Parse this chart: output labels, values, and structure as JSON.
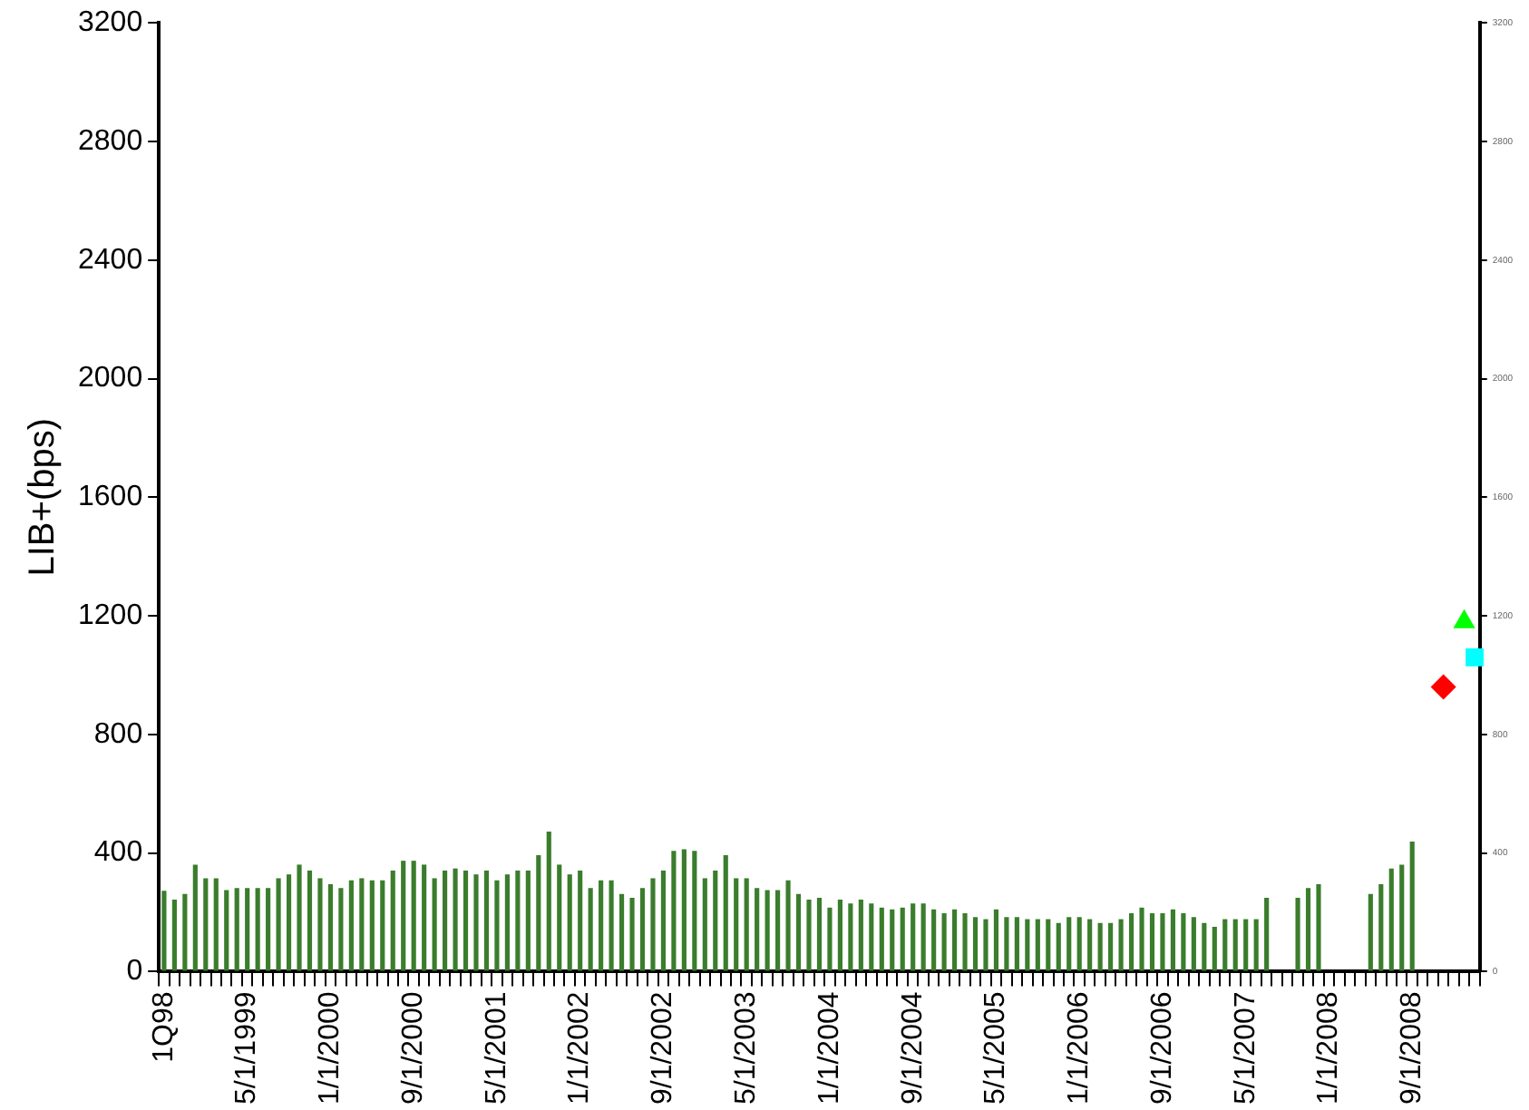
{
  "chart_data": {
    "type": "bar",
    "ylabel": "LIB+(bps)",
    "categories": [
      "1Q98",
      null,
      null,
      null,
      null,
      null,
      null,
      null,
      "5/1/1999",
      null,
      null,
      null,
      null,
      null,
      null,
      null,
      "1/1/2000",
      null,
      null,
      null,
      null,
      null,
      null,
      null,
      "9/1/2000",
      null,
      null,
      null,
      null,
      null,
      null,
      null,
      "5/1/2001",
      null,
      null,
      null,
      null,
      null,
      null,
      null,
      "1/1/2002",
      null,
      null,
      null,
      null,
      null,
      null,
      null,
      "9/1/2002",
      null,
      null,
      null,
      null,
      null,
      null,
      null,
      "5/1/2003",
      null,
      null,
      null,
      null,
      null,
      null,
      null,
      "1/1/2004",
      null,
      null,
      null,
      null,
      null,
      null,
      null,
      "9/1/2004",
      null,
      null,
      null,
      null,
      null,
      null,
      null,
      "5/1/2005",
      null,
      null,
      null,
      null,
      null,
      null,
      null,
      "1/1/2006",
      null,
      null,
      null,
      null,
      null,
      null,
      null,
      "9/1/2006",
      null,
      null,
      null,
      null,
      null,
      null,
      null,
      "5/1/2007",
      null,
      null,
      null,
      null,
      null,
      null,
      null,
      "1/1/2008",
      null,
      null,
      null,
      null,
      null,
      null,
      null,
      "9/1/2008",
      null,
      null,
      null,
      null,
      null,
      null
    ],
    "series": [
      {
        "color": "#3a7d2c",
        "values": [
          273,
          243,
          262,
          361,
          315,
          315,
          275,
          282,
          282,
          282,
          282,
          315,
          328,
          361,
          341,
          315,
          295,
          282,
          308,
          315,
          308,
          308,
          341,
          374,
          374,
          361,
          315,
          341,
          348,
          341,
          328,
          341,
          308,
          328,
          341,
          341,
          393,
          472,
          361,
          328,
          341,
          282,
          308,
          308,
          262,
          249,
          282,
          315,
          341,
          407,
          413,
          407,
          315,
          341,
          393,
          315,
          315,
          282,
          275,
          275,
          308,
          262,
          243,
          249,
          216,
          243,
          230,
          243,
          230,
          216,
          210,
          216,
          230,
          230,
          210,
          197,
          210,
          197,
          184,
          177,
          210,
          184,
          184,
          177,
          177,
          177,
          164,
          184,
          184,
          177,
          164,
          164,
          177,
          197,
          216,
          197,
          197,
          210,
          197,
          184,
          164,
          151,
          177,
          177,
          177,
          177,
          249,
          null,
          null,
          249,
          282,
          295,
          null,
          null,
          null,
          null,
          262,
          295,
          348,
          361,
          439,
          null,
          null,
          null,
          null,
          null,
          null
        ]
      },
      {
        "type": "scatter",
        "color": "#ff0000",
        "marker": "diamond",
        "values": [
          null,
          null,
          null,
          null,
          null,
          null,
          null,
          null,
          null,
          null,
          null,
          null,
          null,
          null,
          null,
          null,
          null,
          null,
          null,
          null,
          null,
          null,
          null,
          null,
          null,
          null,
          null,
          null,
          null,
          null,
          null,
          null,
          null,
          null,
          null,
          null,
          null,
          null,
          null,
          null,
          null,
          null,
          null,
          null,
          null,
          null,
          null,
          null,
          null,
          null,
          null,
          null,
          null,
          null,
          null,
          null,
          null,
          null,
          null,
          null,
          null,
          null,
          null,
          null,
          null,
          null,
          null,
          null,
          null,
          null,
          null,
          null,
          null,
          null,
          null,
          null,
          null,
          null,
          null,
          null,
          null,
          null,
          null,
          null,
          null,
          null,
          null,
          null,
          null,
          null,
          null,
          null,
          null,
          null,
          null,
          null,
          null,
          null,
          null,
          null,
          null,
          null,
          null,
          null,
          null,
          null,
          null,
          null,
          null,
          null,
          null,
          null,
          null,
          null,
          null,
          null,
          null,
          null,
          null,
          null,
          null,
          null,
          null,
          960,
          null,
          null,
          null
        ]
      },
      {
        "type": "scatter",
        "color": "#00ff00",
        "marker": "triangle",
        "values": [
          null,
          null,
          null,
          null,
          null,
          null,
          null,
          null,
          null,
          null,
          null,
          null,
          null,
          null,
          null,
          null,
          null,
          null,
          null,
          null,
          null,
          null,
          null,
          null,
          null,
          null,
          null,
          null,
          null,
          null,
          null,
          null,
          null,
          null,
          null,
          null,
          null,
          null,
          null,
          null,
          null,
          null,
          null,
          null,
          null,
          null,
          null,
          null,
          null,
          null,
          null,
          null,
          null,
          null,
          null,
          null,
          null,
          null,
          null,
          null,
          null,
          null,
          null,
          null,
          null,
          null,
          null,
          null,
          null,
          null,
          null,
          null,
          null,
          null,
          null,
          null,
          null,
          null,
          null,
          null,
          null,
          null,
          null,
          null,
          null,
          null,
          null,
          null,
          null,
          null,
          null,
          null,
          null,
          null,
          null,
          null,
          null,
          null,
          null,
          null,
          null,
          null,
          null,
          null,
          null,
          null,
          null,
          null,
          null,
          null,
          null,
          null,
          null,
          null,
          null,
          null,
          null,
          null,
          null,
          null,
          null,
          null,
          null,
          null,
          null,
          1180,
          null
        ]
      },
      {
        "type": "scatter",
        "color": "#00ffff",
        "marker": "square",
        "values": [
          null,
          null,
          null,
          null,
          null,
          null,
          null,
          null,
          null,
          null,
          null,
          null,
          null,
          null,
          null,
          null,
          null,
          null,
          null,
          null,
          null,
          null,
          null,
          null,
          null,
          null,
          null,
          null,
          null,
          null,
          null,
          null,
          null,
          null,
          null,
          null,
          null,
          null,
          null,
          null,
          null,
          null,
          null,
          null,
          null,
          null,
          null,
          null,
          null,
          null,
          null,
          null,
          null,
          null,
          null,
          null,
          null,
          null,
          null,
          null,
          null,
          null,
          null,
          null,
          null,
          null,
          null,
          null,
          null,
          null,
          null,
          null,
          null,
          null,
          null,
          null,
          null,
          null,
          null,
          null,
          null,
          null,
          null,
          null,
          null,
          null,
          null,
          null,
          null,
          null,
          null,
          null,
          null,
          null,
          null,
          null,
          null,
          null,
          null,
          null,
          null,
          null,
          null,
          null,
          null,
          null,
          null,
          null,
          null,
          null,
          null,
          null,
          null,
          null,
          null,
          null,
          null,
          null,
          null,
          null,
          null,
          null,
          null,
          null,
          null,
          null,
          1060
        ]
      }
    ],
    "ylim": [
      0,
      3200
    ],
    "yticks": [
      0,
      400,
      800,
      1200,
      1600,
      2000,
      2400,
      2800,
      3200
    ],
    "y2lim": [
      0,
      3200
    ],
    "y2ticks": [
      0,
      400,
      800,
      1200,
      1600,
      2000,
      2400,
      2800,
      3200
    ],
    "grid": false
  }
}
